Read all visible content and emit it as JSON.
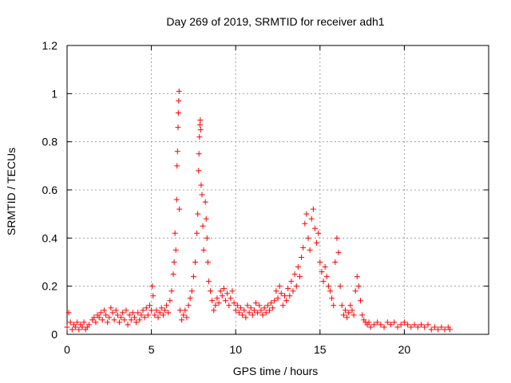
{
  "chart_data": {
    "type": "scatter",
    "title": "Day 269 of 2019, SRMTID for receiver adh1",
    "xlabel": "GPS time / hours",
    "ylabel": "SRMTID / TECUs",
    "xlim": [
      0,
      25
    ],
    "ylim": [
      0,
      1.2
    ],
    "xticks": [
      0,
      5,
      10,
      15,
      20
    ],
    "xtick_labels": [
      "0",
      "5",
      "10",
      "15",
      "20"
    ],
    "yticks": [
      0,
      0.2,
      0.4,
      0.6,
      0.8,
      1.0,
      1.2
    ],
    "ytick_labels": [
      "0",
      "0.2",
      "0.4",
      "0.6",
      "0.8",
      "1",
      "1.2"
    ],
    "grid": true,
    "marker": "plus",
    "color": "#ff0000",
    "series": [
      {
        "name": "adh1",
        "points": [
          [
            0.0,
            0.03
          ],
          [
            0.1,
            0.09
          ],
          [
            0.2,
            0.05
          ],
          [
            0.3,
            0.02
          ],
          [
            0.4,
            0.04
          ],
          [
            0.5,
            0.03
          ],
          [
            0.6,
            0.05
          ],
          [
            0.7,
            0.02
          ],
          [
            0.8,
            0.04
          ],
          [
            0.9,
            0.03
          ],
          [
            1.0,
            0.05
          ],
          [
            1.1,
            0.02
          ],
          [
            1.2,
            0.03
          ],
          [
            1.3,
            0.04
          ],
          [
            1.5,
            0.06
          ],
          [
            1.6,
            0.07
          ],
          [
            1.7,
            0.05
          ],
          [
            1.8,
            0.08
          ],
          [
            1.9,
            0.07
          ],
          [
            2.0,
            0.09
          ],
          [
            2.1,
            0.06
          ],
          [
            2.2,
            0.1
          ],
          [
            2.3,
            0.08
          ],
          [
            2.4,
            0.05
          ],
          [
            2.5,
            0.07
          ],
          [
            2.6,
            0.11
          ],
          [
            2.7,
            0.09
          ],
          [
            2.8,
            0.06
          ],
          [
            2.9,
            0.1
          ],
          [
            3.0,
            0.08
          ],
          [
            3.1,
            0.05
          ],
          [
            3.2,
            0.07
          ],
          [
            3.3,
            0.09
          ],
          [
            3.4,
            0.06
          ],
          [
            3.5,
            0.1
          ],
          [
            3.6,
            0.04
          ],
          [
            3.7,
            0.08
          ],
          [
            3.8,
            0.06
          ],
          [
            3.9,
            0.09
          ],
          [
            4.0,
            0.07
          ],
          [
            4.1,
            0.05
          ],
          [
            4.2,
            0.09
          ],
          [
            4.3,
            0.06
          ],
          [
            4.4,
            0.08
          ],
          [
            4.5,
            0.1
          ],
          [
            4.6,
            0.07
          ],
          [
            4.7,
            0.11
          ],
          [
            4.8,
            0.08
          ],
          [
            4.9,
            0.12
          ],
          [
            5.0,
            0.1
          ],
          [
            5.05,
            0.2
          ],
          [
            5.1,
            0.16
          ],
          [
            5.2,
            0.08
          ],
          [
            5.3,
            0.1
          ],
          [
            5.4,
            0.07
          ],
          [
            5.5,
            0.09
          ],
          [
            5.6,
            0.11
          ],
          [
            5.7,
            0.08
          ],
          [
            5.8,
            0.1
          ],
          [
            5.9,
            0.12
          ],
          [
            6.0,
            0.09
          ],
          [
            6.1,
            0.14
          ],
          [
            6.2,
            0.18
          ],
          [
            6.3,
            0.25
          ],
          [
            6.35,
            0.3
          ],
          [
            6.4,
            0.42
          ],
          [
            6.45,
            0.35
          ],
          [
            6.5,
            0.56
          ],
          [
            6.52,
            0.7
          ],
          [
            6.55,
            0.76
          ],
          [
            6.58,
            0.86
          ],
          [
            6.6,
            0.92
          ],
          [
            6.62,
            0.97
          ],
          [
            6.64,
            1.01
          ],
          [
            6.66,
            0.52
          ],
          [
            6.7,
            0.1
          ],
          [
            6.8,
            0.06
          ],
          [
            6.9,
            0.08
          ],
          [
            7.0,
            0.1
          ],
          [
            7.1,
            0.07
          ],
          [
            7.2,
            0.12
          ],
          [
            7.3,
            0.15
          ],
          [
            7.4,
            0.18
          ],
          [
            7.5,
            0.24
          ],
          [
            7.6,
            0.3
          ],
          [
            7.7,
            0.42
          ],
          [
            7.75,
            0.5
          ],
          [
            7.8,
            0.68
          ],
          [
            7.82,
            0.75
          ],
          [
            7.85,
            0.82
          ],
          [
            7.88,
            0.87
          ],
          [
            7.9,
            0.89
          ],
          [
            7.92,
            0.85
          ],
          [
            7.95,
            0.62
          ],
          [
            8.0,
            0.58
          ],
          [
            8.05,
            0.45
          ],
          [
            8.1,
            0.35
          ],
          [
            8.2,
            0.55
          ],
          [
            8.25,
            0.48
          ],
          [
            8.3,
            0.4
          ],
          [
            8.35,
            0.3
          ],
          [
            8.4,
            0.22
          ],
          [
            8.5,
            0.18
          ],
          [
            8.6,
            0.14
          ],
          [
            8.7,
            0.1
          ],
          [
            8.8,
            0.12
          ],
          [
            8.9,
            0.15
          ],
          [
            9.0,
            0.13
          ],
          [
            9.1,
            0.18
          ],
          [
            9.2,
            0.16
          ],
          [
            9.3,
            0.19
          ],
          [
            9.4,
            0.14
          ],
          [
            9.5,
            0.17
          ],
          [
            9.6,
            0.12
          ],
          [
            9.7,
            0.15
          ],
          [
            9.8,
            0.18
          ],
          [
            9.9,
            0.13
          ],
          [
            10.0,
            0.1
          ],
          [
            10.1,
            0.12
          ],
          [
            10.2,
            0.09
          ],
          [
            10.3,
            0.11
          ],
          [
            10.4,
            0.08
          ],
          [
            10.5,
            0.1
          ],
          [
            10.6,
            0.07
          ],
          [
            10.7,
            0.12
          ],
          [
            10.8,
            0.09
          ],
          [
            10.9,
            0.11
          ],
          [
            11.0,
            0.08
          ],
          [
            11.1,
            0.1
          ],
          [
            11.2,
            0.13
          ],
          [
            11.3,
            0.09
          ],
          [
            11.4,
            0.12
          ],
          [
            11.5,
            0.1
          ],
          [
            11.6,
            0.08
          ],
          [
            11.7,
            0.11
          ],
          [
            11.8,
            0.09
          ],
          [
            11.9,
            0.12
          ],
          [
            12.0,
            0.1
          ],
          [
            12.1,
            0.13
          ],
          [
            12.2,
            0.11
          ],
          [
            12.3,
            0.14
          ],
          [
            12.4,
            0.18
          ],
          [
            12.5,
            0.15
          ],
          [
            12.6,
            0.2
          ],
          [
            12.7,
            0.17
          ],
          [
            12.8,
            0.12
          ],
          [
            12.9,
            0.16
          ],
          [
            13.0,
            0.14
          ],
          [
            13.1,
            0.19
          ],
          [
            13.2,
            0.16
          ],
          [
            13.3,
            0.22
          ],
          [
            13.4,
            0.18
          ],
          [
            13.5,
            0.25
          ],
          [
            13.6,
            0.2
          ],
          [
            13.7,
            0.28
          ],
          [
            13.8,
            0.24
          ],
          [
            13.9,
            0.32
          ],
          [
            14.0,
            0.36
          ],
          [
            14.1,
            0.46
          ],
          [
            14.2,
            0.5
          ],
          [
            14.3,
            0.4
          ],
          [
            14.4,
            0.35
          ],
          [
            14.5,
            0.48
          ],
          [
            14.6,
            0.52
          ],
          [
            14.7,
            0.44
          ],
          [
            14.8,
            0.38
          ],
          [
            14.9,
            0.42
          ],
          [
            15.0,
            0.3
          ],
          [
            15.1,
            0.26
          ],
          [
            15.2,
            0.22
          ],
          [
            15.3,
            0.28
          ],
          [
            15.4,
            0.24
          ],
          [
            15.5,
            0.2
          ],
          [
            15.6,
            0.18
          ],
          [
            15.7,
            0.15
          ],
          [
            15.8,
            0.12
          ],
          [
            15.9,
            0.3
          ],
          [
            16.0,
            0.4
          ],
          [
            16.1,
            0.34
          ],
          [
            16.2,
            0.2
          ],
          [
            16.3,
            0.12
          ],
          [
            16.4,
            0.08
          ],
          [
            16.5,
            0.1
          ],
          [
            16.6,
            0.07
          ],
          [
            16.7,
            0.09
          ],
          [
            16.8,
            0.12
          ],
          [
            16.9,
            0.1
          ],
          [
            17.0,
            0.08
          ],
          [
            17.1,
            0.18
          ],
          [
            17.2,
            0.24
          ],
          [
            17.3,
            0.2
          ],
          [
            17.4,
            0.14
          ],
          [
            17.5,
            0.08
          ],
          [
            17.6,
            0.06
          ],
          [
            17.7,
            0.05
          ],
          [
            17.8,
            0.04
          ],
          [
            17.9,
            0.05
          ],
          [
            18.0,
            0.03
          ],
          [
            18.2,
            0.04
          ],
          [
            18.4,
            0.05
          ],
          [
            18.6,
            0.04
          ],
          [
            18.8,
            0.03
          ],
          [
            19.0,
            0.05
          ],
          [
            19.2,
            0.04
          ],
          [
            19.4,
            0.05
          ],
          [
            19.6,
            0.03
          ],
          [
            19.8,
            0.04
          ],
          [
            20.0,
            0.05
          ],
          [
            20.2,
            0.04
          ],
          [
            20.4,
            0.03
          ],
          [
            20.6,
            0.04
          ],
          [
            20.8,
            0.03
          ],
          [
            21.0,
            0.04
          ],
          [
            21.2,
            0.03
          ],
          [
            21.4,
            0.04
          ],
          [
            21.6,
            0.02
          ],
          [
            21.8,
            0.03
          ],
          [
            22.0,
            0.02
          ],
          [
            22.2,
            0.03
          ],
          [
            22.4,
            0.02
          ],
          [
            22.6,
            0.03
          ],
          [
            22.7,
            0.02
          ]
        ]
      }
    ]
  }
}
